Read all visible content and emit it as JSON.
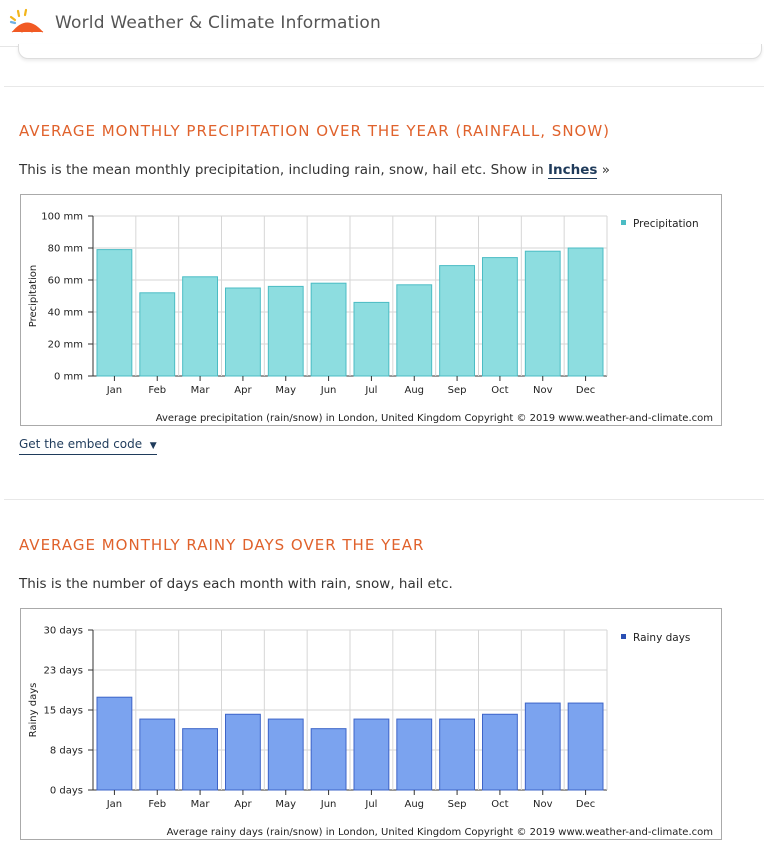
{
  "header": {
    "title": "World Weather & Climate Information"
  },
  "section1": {
    "title": "AVERAGE MONTHLY PRECIPITATION OVER THE YEAR (RAINFALL, SNOW)",
    "description": "This is the mean monthly precipitation, including rain, snow, hail etc. Show in ",
    "link_label": "Inches",
    "link_suffix": " »",
    "embed_label": "Get the embed code",
    "embed_arrow": "▼"
  },
  "section2": {
    "title": "AVERAGE MONTHLY RAINY DAYS OVER THE YEAR",
    "description": "This is the number of days each month with rain, snow, hail etc."
  },
  "chart_data": [
    {
      "type": "bar",
      "categories": [
        "Jan",
        "Feb",
        "Mar",
        "Apr",
        "May",
        "Jun",
        "Jul",
        "Aug",
        "Sep",
        "Oct",
        "Nov",
        "Dec"
      ],
      "series": [
        {
          "name": "Precipitation",
          "values": [
            79,
            52,
            62,
            55,
            56,
            58,
            46,
            57,
            69,
            74,
            78,
            80
          ]
        }
      ],
      "ylabel": "Precipitation",
      "yticks": [
        "0 mm",
        "20 mm",
        "40 mm",
        "60 mm",
        "80 mm",
        "100 mm"
      ],
      "ylim": [
        0,
        100
      ],
      "footer": "Average precipitation (rain/snow) in London, United Kingdom   Copyright © 2019 www.weather-and-climate.com",
      "color": "#8ddde0",
      "border": "#4bbcc4",
      "legend_color": "#4bbcc4",
      "grid": true,
      "legend": "top-right"
    },
    {
      "type": "bar",
      "categories": [
        "Jan",
        "Feb",
        "Mar",
        "Apr",
        "May",
        "Jun",
        "Jul",
        "Aug",
        "Sep",
        "Oct",
        "Nov",
        "Dec"
      ],
      "series": [
        {
          "name": "Rainy days",
          "values": [
            17.4,
            13.3,
            11.5,
            14.2,
            13.3,
            11.5,
            13.3,
            13.3,
            13.3,
            14.2,
            16.3,
            16.3
          ]
        }
      ],
      "ylabel": "Rainy days",
      "yticks": [
        "0 days",
        "8 days",
        "15 days",
        "23 days",
        "30 days"
      ],
      "ylim": [
        0,
        30
      ],
      "footer": "Average rainy days (rain/snow) in London, United Kingdom   Copyright © 2019 www.weather-and-climate.com",
      "color": "#7ba3ef",
      "border": "#3d64c8",
      "legend_color": "#2a4fb3",
      "grid": true,
      "legend": "top-right"
    }
  ]
}
